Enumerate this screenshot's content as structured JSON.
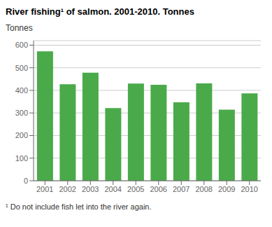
{
  "chart_data": {
    "type": "bar",
    "title": "River fishing¹ of salmon. 2001-2010. Tonnes",
    "ylabel": "Tonnes",
    "footnote": "¹ Do not include fish let into the river again.",
    "categories": [
      "2001",
      "2002",
      "2003",
      "2004",
      "2005",
      "2006",
      "2007",
      "2008",
      "2009",
      "2010"
    ],
    "values": [
      573,
      427,
      478,
      322,
      430,
      425,
      347,
      431,
      315,
      387
    ],
    "color": "#4aaa4a",
    "ylim": [
      0,
      620
    ],
    "yticks": [
      0,
      100,
      200,
      300,
      400,
      500,
      600
    ],
    "grid": true
  }
}
